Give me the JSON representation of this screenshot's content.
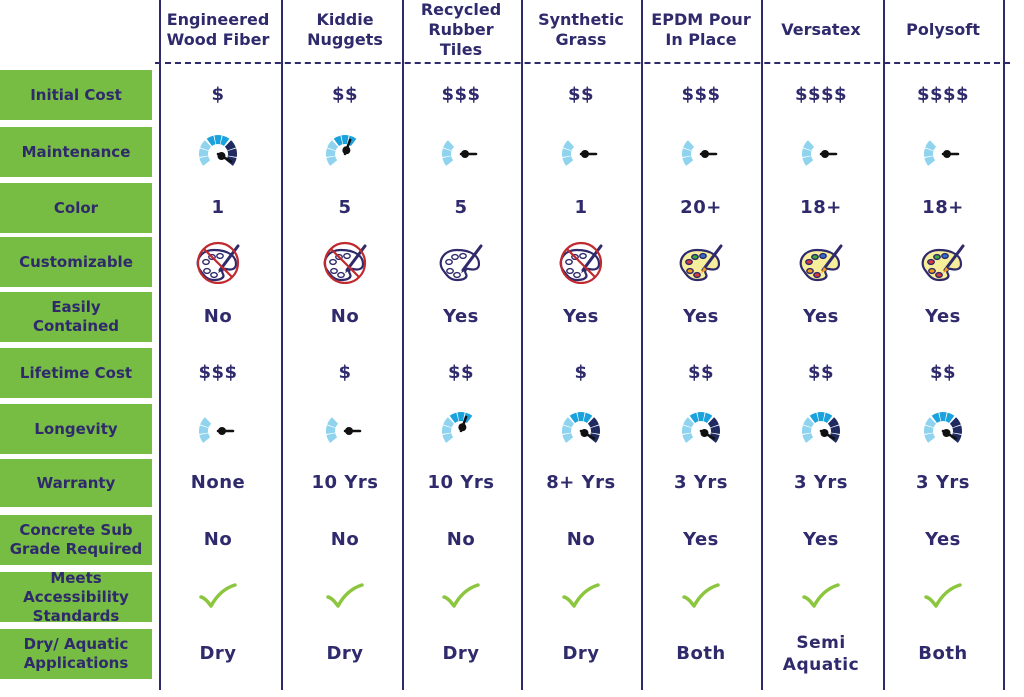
{
  "columns": [
    "Engineered\nWood Fiber",
    "Kiddie\nNuggets",
    "Recycled\nRubber\nTiles",
    "Synthetic\nGrass",
    "EPDM Pour\nIn Place",
    "Versatex",
    "Polysoft"
  ],
  "colors": {
    "navy": "#2e2a6b",
    "label_green": "#77bc43",
    "check_green": "#8cc63f",
    "gauge_light": "#8fd3ee",
    "gauge_mid": "#1ba1dc",
    "gauge_dark": "#1f2a60",
    "no_circle_red": "#c0292e"
  },
  "rows": [
    {
      "label": "Initial Cost",
      "type": "text",
      "values": [
        "$",
        "$$",
        "$$$",
        "$$",
        "$$$",
        "$$$$",
        "$$$$"
      ]
    },
    {
      "label": "Maintenance",
      "type": "gauge",
      "levels": [
        3,
        2,
        1,
        1,
        1,
        1,
        1
      ]
    },
    {
      "label": "Color",
      "type": "text",
      "values": [
        "1",
        "5",
        "5",
        "1",
        "20+",
        "18+",
        "18+"
      ]
    },
    {
      "label": "Customizable",
      "type": "palette",
      "styles": [
        "crossed",
        "crossed",
        "plain",
        "crossed",
        "color",
        "color",
        "color"
      ]
    },
    {
      "label": "Easily\nContained",
      "type": "text",
      "values": [
        "No",
        "No",
        "Yes",
        "Yes",
        "Yes",
        "Yes",
        "Yes"
      ]
    },
    {
      "label": "Lifetime Cost",
      "type": "text",
      "values": [
        "$$$",
        "$",
        "$$",
        "$",
        "$$",
        "$$",
        "$$"
      ]
    },
    {
      "label": "Longevity",
      "type": "gauge",
      "levels": [
        1,
        1,
        2,
        3,
        3,
        3,
        3
      ]
    },
    {
      "label": "Warranty",
      "type": "text",
      "values": [
        "None",
        "10 Yrs",
        "10 Yrs",
        "8+ Yrs",
        "3 Yrs",
        "3 Yrs",
        "3 Yrs"
      ]
    },
    {
      "label": "Concrete Sub\nGrade Required",
      "type": "text",
      "values": [
        "No",
        "No",
        "No",
        "No",
        "Yes",
        "Yes",
        "Yes"
      ]
    },
    {
      "label": "Meets Accessibility\nStandards",
      "type": "check",
      "values": [
        true,
        true,
        true,
        true,
        true,
        true,
        true
      ]
    },
    {
      "label": "Dry/ Aquatic\nApplications",
      "type": "text",
      "values": [
        "Dry",
        "Dry",
        "Dry",
        "Dry",
        "Both",
        "Semi\nAquatic",
        "Both"
      ]
    }
  ]
}
